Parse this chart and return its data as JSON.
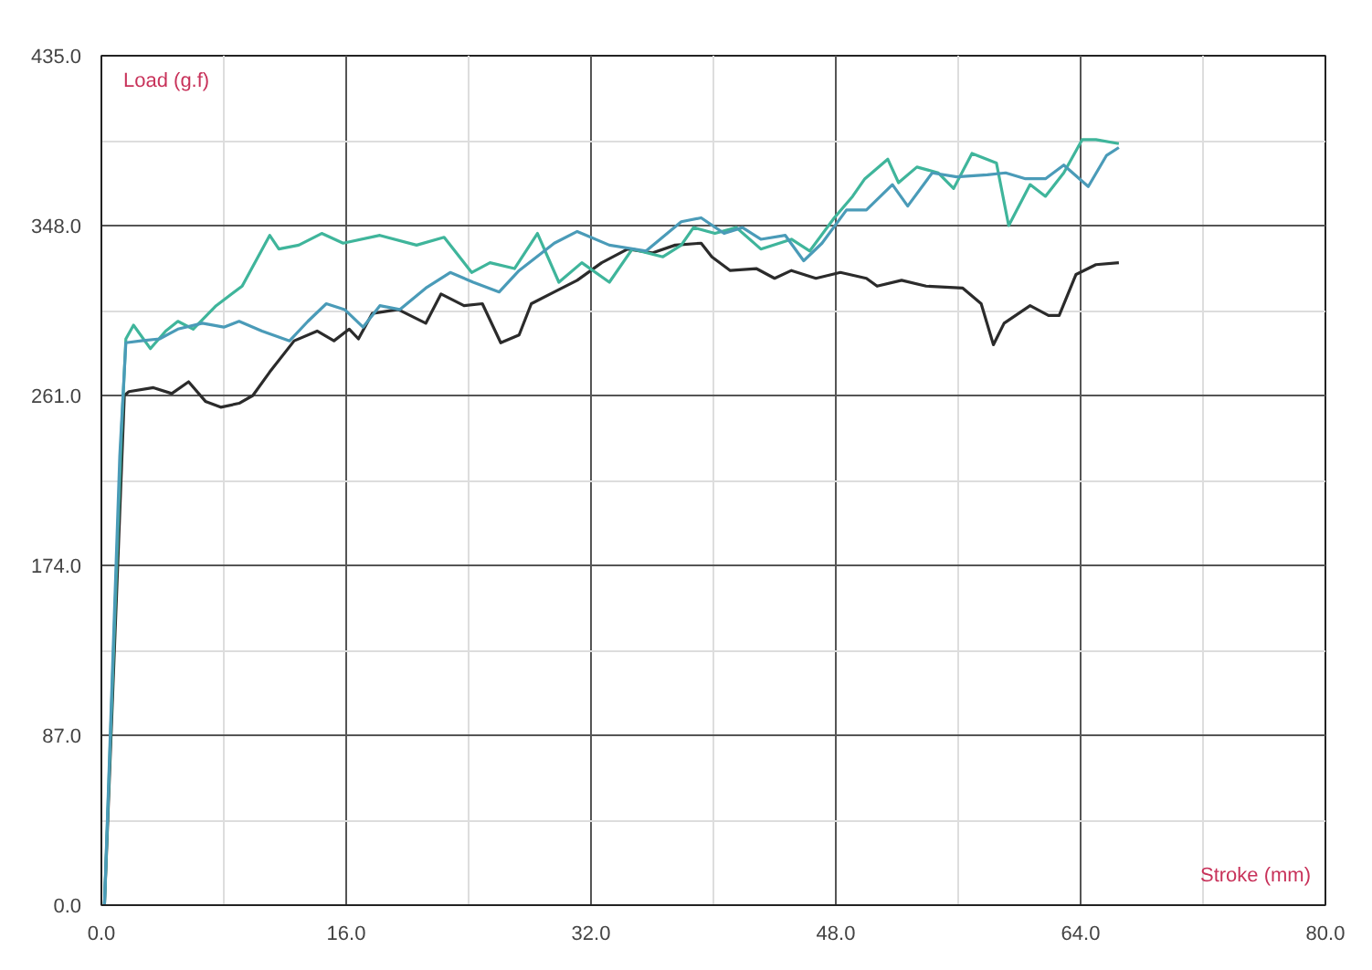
{
  "chart_data": {
    "type": "line",
    "xlabel": "Stroke (mm)",
    "ylabel": "Load (g.f)",
    "xlim": [
      0,
      80
    ],
    "ylim": [
      0,
      435
    ],
    "xticks": [
      {
        "value": 0,
        "label": "0.0"
      },
      {
        "value": 16,
        "label": "16.0"
      },
      {
        "value": 32,
        "label": "32.0"
      },
      {
        "value": 48,
        "label": "48.0"
      },
      {
        "value": 64,
        "label": "64.0"
      },
      {
        "value": 80,
        "label": "80.0"
      }
    ],
    "yticks": [
      {
        "value": 0,
        "label": "0.0"
      },
      {
        "value": 87,
        "label": "87.0"
      },
      {
        "value": 174,
        "label": "174.0"
      },
      {
        "value": 261,
        "label": "261.0"
      },
      {
        "value": 348,
        "label": "348.0"
      },
      {
        "value": 435,
        "label": "435.0"
      }
    ],
    "grid": true,
    "line_style": "solid",
    "marker": "none",
    "series": [
      {
        "color": "#2b2b2b",
        "x": [
          0.2,
          1.5,
          1.8,
          3.4,
          4.6,
          5.7,
          6.8,
          7.8,
          9.0,
          9.9,
          11.0,
          12.6,
          14.1,
          15.2,
          16.2,
          16.8,
          17.7,
          19.4,
          21.2,
          22.2,
          23.7,
          24.9,
          26.1,
          27.3,
          28.1,
          29.6,
          31.1,
          32.7,
          34.4,
          36.0,
          37.5,
          39.2,
          39.9,
          41.1,
          42.8,
          44.0,
          45.1,
          46.7,
          48.3,
          50.0,
          50.7,
          52.3,
          53.9,
          56.3,
          57.5,
          58.3,
          59.0,
          60.7,
          61.9,
          62.6,
          63.7,
          65.0,
          66.5
        ],
        "values": [
          0,
          261,
          263,
          265,
          262,
          268,
          258,
          255,
          257,
          261,
          273,
          289,
          294,
          289,
          295,
          290,
          303,
          305,
          298,
          313,
          307,
          308,
          288,
          292,
          308,
          314,
          320,
          329,
          336,
          334,
          338,
          339,
          332,
          325,
          326,
          321,
          325,
          321,
          324,
          321,
          317,
          320,
          317,
          316,
          308,
          287,
          298,
          307,
          302,
          302,
          323,
          328,
          329
        ]
      },
      {
        "color": "#3fb59b",
        "x": [
          0.2,
          1.3,
          1.6,
          2.1,
          3.2,
          4.2,
          5.0,
          6.0,
          7.5,
          9.2,
          11.0,
          11.6,
          12.9,
          14.4,
          15.8,
          18.2,
          20.6,
          22.4,
          24.2,
          25.4,
          27.0,
          28.5,
          29.9,
          31.4,
          33.2,
          34.7,
          36.7,
          37.9,
          38.7,
          40.1,
          41.5,
          43.1,
          45.1,
          46.3,
          47.9,
          49.1,
          49.9,
          51.4,
          52.1,
          53.3,
          54.7,
          55.7,
          56.9,
          58.5,
          59.3,
          60.7,
          61.7,
          62.9,
          64.1,
          65.0,
          66.5
        ],
        "values": [
          0,
          240,
          290,
          297,
          285,
          294,
          299,
          295,
          307,
          317,
          343,
          336,
          338,
          344,
          339,
          343,
          338,
          342,
          324,
          329,
          326,
          344,
          319,
          329,
          319,
          336,
          332,
          338,
          347,
          344,
          347,
          336,
          341,
          335,
          352,
          363,
          372,
          382,
          370,
          378,
          375,
          367,
          385,
          380,
          348,
          369,
          363,
          375,
          392,
          392,
          390
        ]
      },
      {
        "color": "#4a9bb8",
        "x": [
          0.2,
          1.2,
          1.6,
          2.6,
          3.8,
          5.0,
          6.6,
          8.0,
          9.0,
          10.5,
          12.3,
          13.5,
          14.7,
          15.9,
          17.1,
          18.2,
          19.5,
          21.2,
          22.8,
          24.3,
          26.0,
          27.3,
          29.6,
          31.1,
          33.2,
          35.6,
          37.9,
          39.2,
          40.7,
          41.9,
          43.1,
          44.7,
          45.9,
          47.1,
          48.7,
          50.0,
          51.7,
          52.7,
          54.3,
          55.9,
          57.9,
          59.1,
          60.4,
          61.7,
          62.9,
          64.5,
          65.7,
          66.5
        ],
        "values": [
          0,
          230,
          288,
          289,
          290,
          295,
          298,
          296,
          299,
          294,
          289,
          299,
          308,
          305,
          296,
          307,
          305,
          316,
          324,
          319,
          314,
          325,
          339,
          345,
          338,
          335,
          350,
          352,
          344,
          347,
          341,
          343,
          330,
          339,
          356,
          356,
          369,
          358,
          375,
          373,
          374,
          375,
          372,
          372,
          379,
          368,
          384,
          388
        ]
      }
    ]
  }
}
